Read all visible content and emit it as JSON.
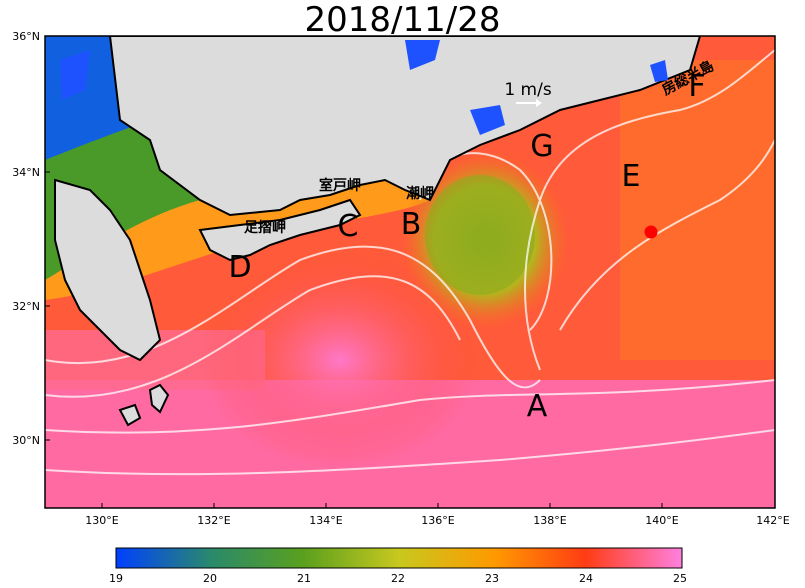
{
  "title": "2018/11/28",
  "map": {
    "lat_labels": [
      "36°N",
      "34°N",
      "32°N",
      "30°N"
    ],
    "lon_labels": [
      "130°E",
      "132°E",
      "134°E",
      "136°E",
      "138°E",
      "140°E",
      "142°E"
    ],
    "scale_label": "1 m/s",
    "places": {
      "ashizuri": "足摺岬",
      "muroto": "室戸岬",
      "shiono": "潮岬",
      "boso": "房総半島"
    },
    "points": {
      "A": "A",
      "B": "B",
      "C": "C",
      "D": "D",
      "E": "E",
      "F": "F",
      "G": "G"
    }
  },
  "colorbar": {
    "ticks": [
      "19",
      "20",
      "21",
      "22",
      "23",
      "24",
      "25"
    ],
    "colors": [
      "#0040ff",
      "#2a8a6a",
      "#5aa01e",
      "#c8c81e",
      "#ff9900",
      "#ff3c14",
      "#ff80e0"
    ]
  },
  "colors": {
    "land": "#dcdcdc",
    "marker": "#ff0000"
  }
}
